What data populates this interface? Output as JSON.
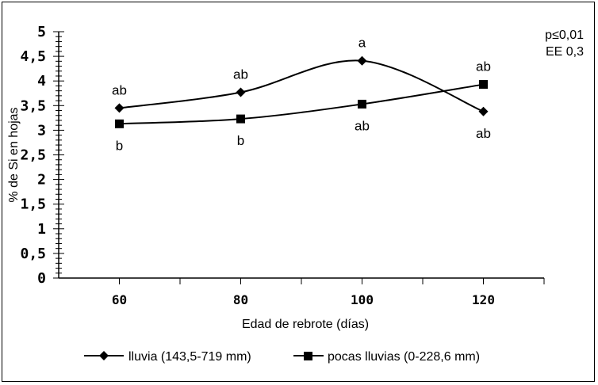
{
  "chart_data": {
    "type": "line",
    "x": [
      60,
      80,
      100,
      120
    ],
    "xlabel": "Edad de rebrote (días)",
    "ylabel": "% de Si en hojas",
    "ylim": [
      0,
      5
    ],
    "yticks": [
      "0",
      "0,5",
      "1",
      "1,5",
      "2",
      "2,5",
      "3",
      "3,5",
      "4",
      "4,5",
      "5"
    ],
    "xticks": [
      "60",
      "80",
      "100",
      "120"
    ],
    "series": [
      {
        "name": "lluvia (143,5-719 mm)",
        "marker": "diamond",
        "values": [
          3.45,
          3.77,
          4.41,
          3.38
        ],
        "labels": [
          "ab",
          "ab",
          "a",
          "ab"
        ],
        "label_pos": [
          "above",
          "above",
          "above",
          "below"
        ]
      },
      {
        "name": "pocas lluvias (0-228,6 mm)",
        "marker": "square",
        "values": [
          3.13,
          3.23,
          3.53,
          3.93
        ],
        "labels": [
          "b",
          "b",
          "ab",
          "ab"
        ],
        "label_pos": [
          "below",
          "below",
          "below",
          "above"
        ]
      }
    ],
    "annotations": [
      "p≤0,01",
      "EE 0,3"
    ],
    "grid": false,
    "legend_position": "bottom"
  }
}
